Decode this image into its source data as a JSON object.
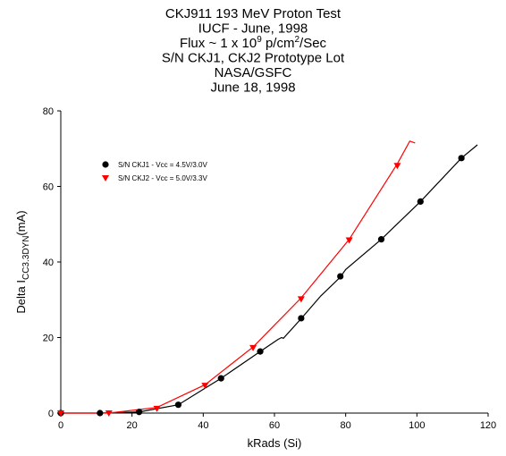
{
  "chart_data": {
    "type": "scatter",
    "title_lines": [
      "CKJ911 193 MeV Proton Test",
      "IUCF - June, 1998",
      [
        "Flux ~ 1 x 10",
        "9",
        " p/cm",
        "2",
        "/Sec"
      ],
      "S/N CKJ1, CKJ2 Prototype Lot",
      "NASA/GSFC",
      "June 18, 1998"
    ],
    "x_label": "kRads (Si)",
    "y_label": [
      "Delta I",
      "CC3.3DYN",
      "(mA)"
    ],
    "xlim": [
      0,
      120
    ],
    "xticks": [
      0,
      20,
      40,
      60,
      80,
      100,
      120
    ],
    "ylim": [
      0,
      80
    ],
    "yticks": [
      0,
      20,
      40,
      60,
      80
    ],
    "legend": "upper left",
    "series": [
      {
        "name": "S/N CKJ1 - Vcc = 4.5V/3.0V",
        "color": "#000000",
        "marker": "circle",
        "x": [
          0,
          11,
          22,
          33,
          45,
          56,
          67.5,
          78.5,
          90,
          101,
          112.5
        ],
        "values": [
          0,
          0,
          0.3,
          2.2,
          9.2,
          16.3,
          25.1,
          36.2,
          46,
          56,
          67.5
        ]
      },
      {
        "name": "S/N CKJ2 - Vcc = 5.0V/3.3V",
        "color": "#ff0000",
        "marker": "triangle",
        "x": [
          0,
          13.5,
          27,
          40.5,
          54,
          67.5,
          81,
          94.5
        ],
        "values": [
          0,
          0,
          1.2,
          7.3,
          17.3,
          30.2,
          45.8,
          65.5
        ]
      }
    ],
    "curves": [
      {
        "color": "#000000",
        "x": [
          0,
          11,
          22,
          33,
          45,
          56,
          61,
          62,
          62.5,
          67.5,
          73,
          78.5,
          80,
          90,
          101,
          112.5,
          117
        ],
        "values": [
          0,
          0,
          0.3,
          2.2,
          9.2,
          16.3,
          19.5,
          20,
          19.8,
          25,
          31,
          36,
          38,
          46,
          56,
          67.5,
          71
        ]
      },
      {
        "color": "#ff0000",
        "x": [
          0,
          13.5,
          27,
          40.5,
          54,
          67.5,
          81,
          94.5,
          98,
          99.5
        ],
        "values": [
          0,
          0,
          1.5,
          7.5,
          17.5,
          30.5,
          46,
          66,
          72,
          71.5
        ]
      }
    ]
  }
}
